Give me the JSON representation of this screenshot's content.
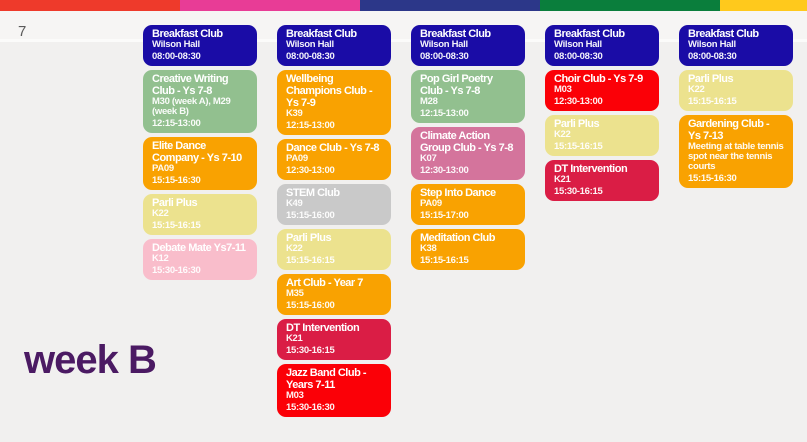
{
  "header": {
    "row_label": "7",
    "stripe_colors": [
      "#EE3A2B",
      "#E83C96",
      "#2C3789",
      "#0A7E3C",
      "#FFC91C"
    ]
  },
  "footer": {
    "week_label": "week B",
    "week_label_color": "#4B1A63"
  },
  "palette": {
    "navy": "#1A0CA6",
    "green": "#92C08F",
    "orange": "#F9A201",
    "paleYellow": "#ECE28E",
    "lightPink": "#F9BDCB",
    "rose": "#D4749C",
    "gray": "#C9C9C9",
    "red": "#FB0007",
    "crimson": "#DA1D45"
  },
  "schedule": {
    "columns": [
      {
        "events": [
          {
            "title": "Breakfast Club",
            "location": "Wilson Hall",
            "time": "08:00-08:30",
            "color": "navy"
          },
          {
            "title": "Creative Writing Club - Ys 7-8",
            "location": "M30 (week A), M29 (week B)",
            "time": "12:15-13:00",
            "color": "green"
          },
          {
            "title": "Elite Dance Company - Ys 7-10",
            "location": "PA09",
            "time": "15:15-16:30",
            "color": "orange"
          },
          {
            "title": "Parli Plus",
            "location": "K22",
            "time": "15:15-16:15",
            "color": "paleYellow"
          },
          {
            "title": "Debate Mate Ys7-11",
            "location": "K12",
            "time": "15:30-16:30",
            "color": "lightPink"
          }
        ]
      },
      {
        "events": [
          {
            "title": "Breakfast Club",
            "location": "Wilson Hall",
            "time": "08:00-08:30",
            "color": "navy"
          },
          {
            "title": "Wellbeing Champions Club - Ys 7-9",
            "location": "K39",
            "time": "12:15-13:00",
            "color": "orange"
          },
          {
            "title": "Dance Club - Ys 7-8",
            "location": "PA09",
            "time": "12:30-13:00",
            "color": "orange"
          },
          {
            "title": "STEM Club",
            "location": "K49",
            "time": "15:15-16:00",
            "color": "gray"
          },
          {
            "title": "Parli Plus",
            "location": "K22",
            "time": "15:15-16:15",
            "color": "paleYellow"
          },
          {
            "title": "Art Club - Year 7",
            "location": "M35",
            "time": "15:15-16:00",
            "color": "orange"
          },
          {
            "title": "DT Intervention",
            "location": "K21",
            "time": "15:30-16:15",
            "color": "crimson"
          },
          {
            "title": "Jazz Band Club - Years 7-11",
            "location": "M03",
            "time": "15:30-16:30",
            "color": "red"
          }
        ]
      },
      {
        "events": [
          {
            "title": "Breakfast Club",
            "location": "Wilson Hall",
            "time": "08:00-08:30",
            "color": "navy"
          },
          {
            "title": "Pop Girl Poetry Club - Ys 7-8",
            "location": "M28",
            "time": "12:15-13:00",
            "color": "green"
          },
          {
            "title": "Climate Action Group Club - Ys 7-8",
            "location": "K07",
            "time": "12:30-13:00",
            "color": "rose"
          },
          {
            "title": "Step Into Dance",
            "location": "PA09",
            "time": "15:15-17:00",
            "color": "orange"
          },
          {
            "title": "Meditation Club",
            "location": "K38",
            "time": "15:15-16:15",
            "color": "orange"
          }
        ]
      },
      {
        "events": [
          {
            "title": "Breakfast Club",
            "location": "Wilson Hall",
            "time": "08:00-08:30",
            "color": "navy"
          },
          {
            "title": "Choir Club - Ys 7-9",
            "location": "M03",
            "time": "12:30-13:00",
            "color": "red"
          },
          {
            "title": "Parli Plus",
            "location": "K22",
            "time": "15:15-16:15",
            "color": "paleYellow"
          },
          {
            "title": "DT Intervention",
            "location": "K21",
            "time": "15:30-16:15",
            "color": "crimson"
          }
        ]
      },
      {
        "events": [
          {
            "title": "Breakfast Club",
            "location": "Wilson Hall",
            "time": "08:00-08:30",
            "color": "navy"
          },
          {
            "title": "Parli Plus",
            "location": "K22",
            "time": "15:15-16:15",
            "color": "paleYellow"
          },
          {
            "title": "Gardening Club - Ys 7-13",
            "location": "Meeting at table tennis spot near the tennis courts",
            "time": "15:15-16:30",
            "color": "orange"
          }
        ]
      }
    ]
  }
}
